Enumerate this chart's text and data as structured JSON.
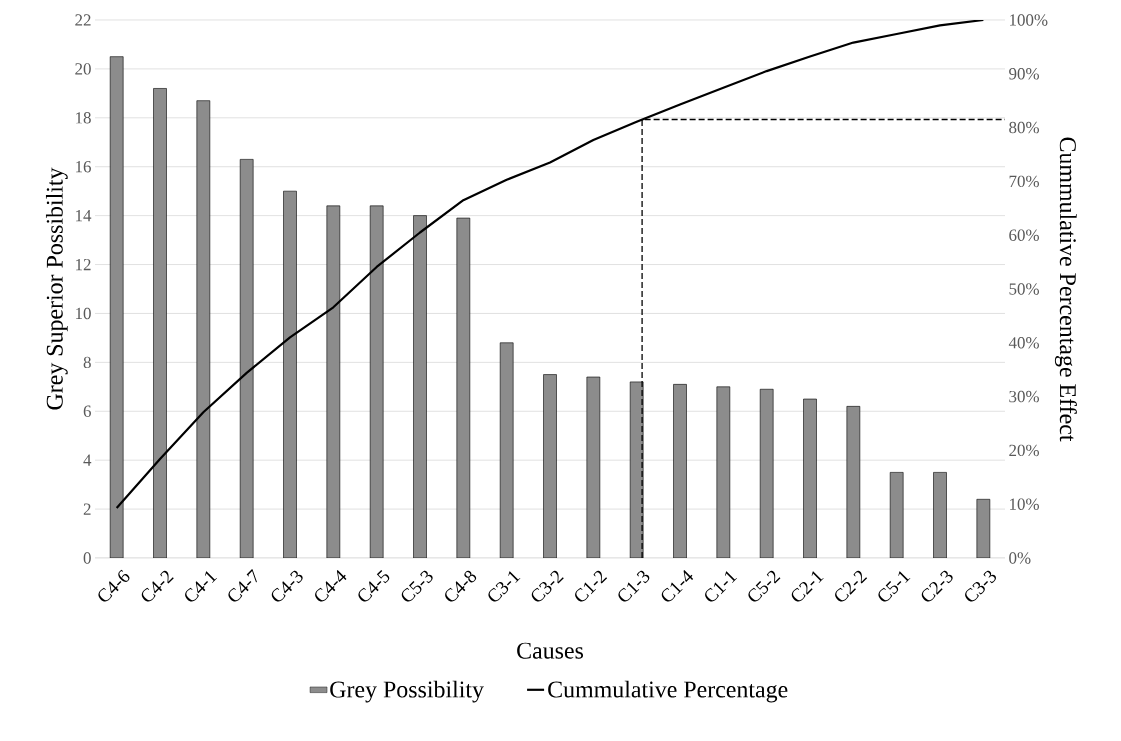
{
  "chart_data": {
    "type": "bar",
    "xlabel": "Causes",
    "ylabel": "Grey Superior Possibility",
    "y2label": "Cummulative Percentage Effect",
    "categories": [
      "C4-6",
      "C4-2",
      "C4-1",
      "C4-7",
      "C4-3",
      "C4-4",
      "C4-5",
      "C5-3",
      "C4-8",
      "C3-1",
      "C3-2",
      "C1-2",
      "C1-3",
      "C1-4",
      "C1-1",
      "C5-2",
      "C2-1",
      "C2-2",
      "C5-1",
      "C2-3",
      "C3-3"
    ],
    "series": [
      {
        "name": "Grey Possibility",
        "color": "#8c8c8c",
        "values": [
          20.5,
          19.2,
          18.7,
          16.3,
          15.0,
          14.4,
          14.4,
          14.0,
          13.9,
          8.8,
          7.5,
          7.4,
          7.2,
          7.1,
          7.0,
          6.9,
          6.5,
          6.2,
          3.5,
          3.5,
          2.4
        ]
      },
      {
        "name": "Cummulative  Percentage",
        "type": "line",
        "axis": "y2",
        "color": "#000000",
        "values": [
          9.3,
          18.4,
          27.1,
          34.4,
          41.0,
          46.6,
          54.1,
          60.5,
          66.5,
          70.3,
          73.5,
          77.7,
          81.1,
          84.3,
          87.4,
          90.5,
          93.2,
          95.8,
          97.4,
          99.0,
          100
        ]
      }
    ],
    "ylim": [
      0,
      22
    ],
    "yticks": [
      0,
      2,
      4,
      6,
      8,
      10,
      12,
      14,
      16,
      18,
      20,
      22
    ],
    "y2lim": [
      0,
      100
    ],
    "y2ticks": [
      {
        "value": 0,
        "label": "0%"
      },
      {
        "value": 10,
        "label": "10%"
      },
      {
        "value": 20,
        "label": "20%"
      },
      {
        "value": 30,
        "label": "30%"
      },
      {
        "value": 40,
        "label": "40%"
      },
      {
        "value": 50,
        "label": "50%"
      },
      {
        "value": 60,
        "label": "60%"
      },
      {
        "value": 70,
        "label": "70%"
      },
      {
        "value": 80,
        "label": "80%"
      },
      {
        "value": 90,
        "label": "90%"
      },
      {
        "value": 100,
        "label": "100%"
      }
    ],
    "grid": "y",
    "legend": "bottom",
    "ref_lines": [
      {
        "axis": "y2",
        "value": 81.5,
        "color": "#000000",
        "line_style": "dashed"
      }
    ]
  }
}
